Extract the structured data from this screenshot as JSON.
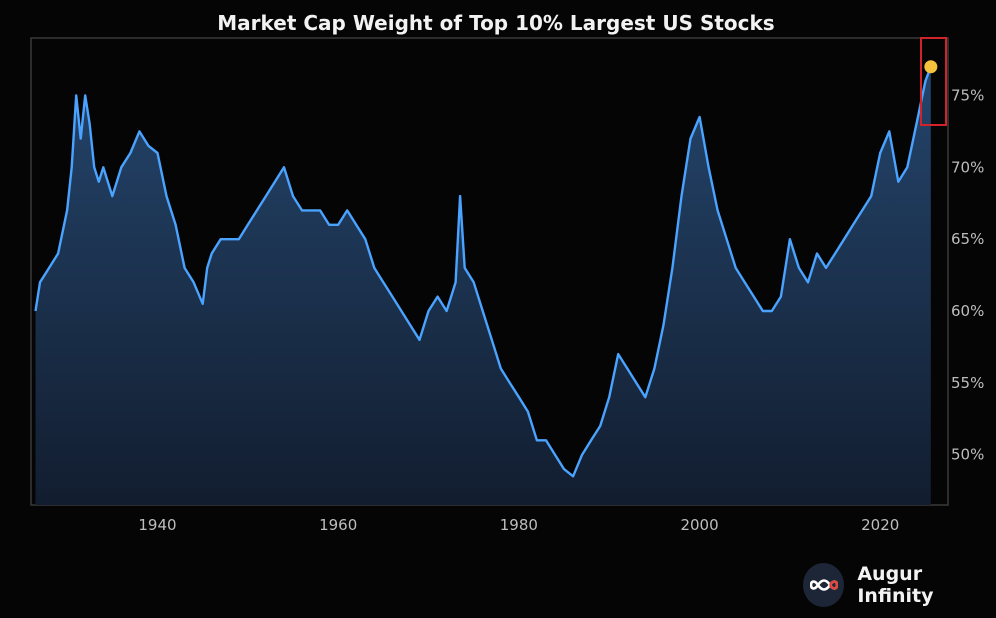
{
  "chart_data": {
    "type": "area",
    "title": "Market Cap Weight of Top 10% Largest US Stocks",
    "xlabel": "",
    "ylabel": "",
    "x_ticks": [
      "1940",
      "1960",
      "1980",
      "2000",
      "2020"
    ],
    "y_ticks": [
      "50%",
      "55%",
      "60%",
      "65%",
      "70%",
      "75%"
    ],
    "xlim": [
      1926,
      2027.5
    ],
    "ylim": [
      46.5,
      79
    ],
    "grid": false,
    "legend": "none",
    "x": [
      1926.5,
      1927,
      1928,
      1929,
      1930,
      1930.5,
      1931,
      1931.5,
      1932,
      1932.5,
      1933,
      1933.5,
      1934,
      1935,
      1936,
      1937,
      1938,
      1939,
      1940,
      1941,
      1942,
      1943,
      1944,
      1945,
      1945.5,
      1946,
      1947,
      1948,
      1949,
      1950,
      1951,
      1952,
      1953,
      1954,
      1955,
      1956,
      1957,
      1958,
      1959,
      1960,
      1961,
      1962,
      1963,
      1964,
      1965,
      1966,
      1967,
      1968,
      1969,
      1970,
      1971,
      1972,
      1973,
      1973.5,
      1974,
      1975,
      1976,
      1977,
      1978,
      1979,
      1980,
      1981,
      1982,
      1983,
      1984,
      1985,
      1986,
      1987,
      1988,
      1989,
      1990,
      1991,
      1992,
      1993,
      1994,
      1995,
      1996,
      1997,
      1998,
      1999,
      2000,
      2001,
      2002,
      2003,
      2004,
      2005,
      2006,
      2007,
      2008,
      2009,
      2010,
      2011,
      2012,
      2013,
      2014,
      2015,
      2016,
      2017,
      2018,
      2019,
      2020,
      2021,
      2022,
      2023,
      2024,
      2025,
      2025.6
    ],
    "values": [
      60.0,
      62.0,
      63.0,
      64.0,
      67.0,
      70.0,
      75.0,
      72.0,
      75.0,
      73.0,
      70.0,
      69.0,
      70.0,
      68.0,
      70.0,
      71.0,
      72.5,
      71.5,
      71.0,
      68.0,
      66.0,
      63.0,
      62.0,
      60.5,
      63.0,
      64.0,
      65.0,
      65.0,
      65.0,
      66.0,
      67.0,
      68.0,
      69.0,
      70.0,
      68.0,
      67.0,
      67.0,
      67.0,
      66.0,
      66.0,
      67.0,
      66.0,
      65.0,
      63.0,
      62.0,
      61.0,
      60.0,
      59.0,
      58.0,
      60.0,
      61.0,
      60.0,
      62.0,
      68.0,
      63.0,
      62.0,
      60.0,
      58.0,
      56.0,
      55.0,
      54.0,
      53.0,
      51.0,
      51.0,
      50.0,
      49.0,
      48.5,
      50.0,
      51.0,
      52.0,
      54.0,
      57.0,
      56.0,
      55.0,
      54.0,
      56.0,
      59.0,
      63.0,
      68.0,
      72.0,
      73.5,
      70.0,
      67.0,
      65.0,
      63.0,
      62.0,
      61.0,
      60.0,
      60.0,
      61.0,
      65.0,
      63.0,
      62.0,
      64.0,
      63.0,
      64.0,
      65.0,
      66.0,
      67.0,
      68.0,
      71.0,
      72.5,
      69.0,
      70.0,
      73.0,
      76.0,
      77.0
    ],
    "highlight_point": {
      "x": 2025.6,
      "y": 77.0
    },
    "colors": {
      "line": "#4aa3ff",
      "area_top": "#24456c",
      "area_bottom": "#121d2f",
      "highlight_dot": "#f6c23e",
      "highlight_box": "#d0232a",
      "background": "#050505",
      "frame": "#3a3a3a"
    }
  },
  "brand": {
    "name": "Augur Infinity",
    "logo_icon": "infinity-icon"
  }
}
